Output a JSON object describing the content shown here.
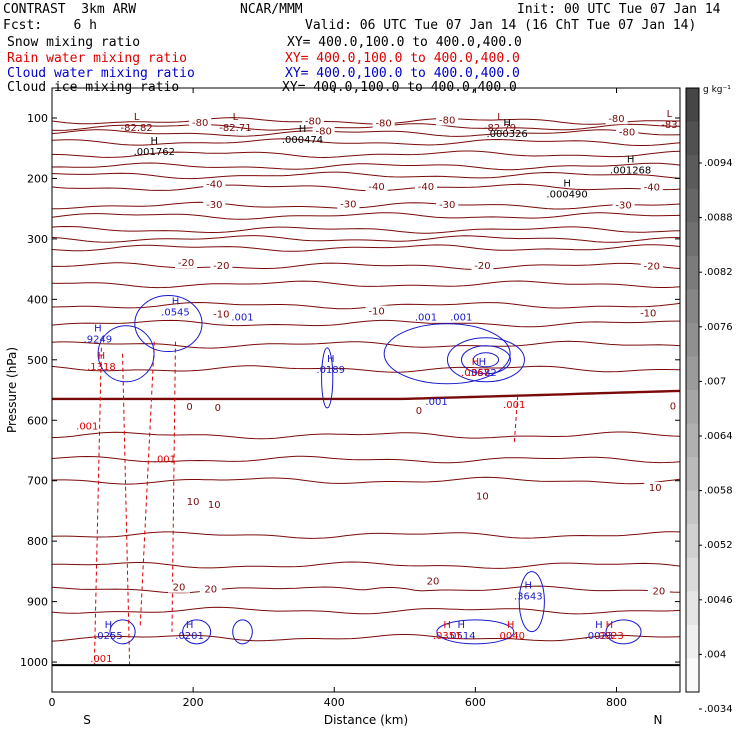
{
  "header": {
    "model": "CONTRAST  3km ARW",
    "org": "NCAR/MMM",
    "init": "Init: 00 UTC Tue 07 Jan 14",
    "fcst": "Fcst:    6 h",
    "valid": "Valid: 06 UTC Tue 07 Jan 14 (16 ChT Tue 07 Jan 14)",
    "fields": [
      {
        "name": "Snow mixing ratio",
        "xy": "XY= 400.0,100.0 to 400.0,400.0",
        "color": "#000000"
      },
      {
        "name": "Rain water mixing ratio",
        "xy": "XY= 400.0,100.0 to 400.0,400.0",
        "color": "#dd0000"
      },
      {
        "name": "Cloud water mixing ratio",
        "xy": "XY= 400.0,100.0 to 400.0,400.0",
        "color": "#0000cc"
      },
      {
        "name": "Cloud ice mixing ratio",
        "xy": "XY= 400.0,100.0 to 400.0,400.0",
        "color": "#000000"
      }
    ]
  },
  "colors": {
    "temperature": "#7a0a0a",
    "rain": "#dd0000",
    "cloud": "#1a1acc",
    "text": "#000000"
  },
  "chart_data": {
    "type": "line",
    "xlabel": "Distance (km)",
    "ylabel": "Pressure (hPa)",
    "xlim": [
      0,
      890
    ],
    "ylim": [
      1050,
      70
    ],
    "y_scale": "pressure",
    "x_ticks": [
      0,
      200,
      400,
      600,
      800
    ],
    "y_ticks": [
      100,
      200,
      300,
      400,
      500,
      600,
      700,
      800,
      900,
      1000
    ],
    "x_end_labels": {
      "left": "S",
      "right": "N"
    },
    "colorbar": {
      "unit": "g kg⁻¹",
      "ticks": [
        ".0094",
        ".0088",
        ".0082",
        ".0076",
        ".007",
        ".0064",
        ".0058",
        ".0052",
        ".0046",
        ".004",
        ".0034"
      ]
    },
    "isotherms": [
      {
        "label": "-80",
        "y": 105
      },
      {
        "label": "-80",
        "y": 115
      },
      {
        "label": "-80",
        "y": 125
      },
      {
        "label": "",
        "y": 140
      },
      {
        "label": "",
        "y": 160
      },
      {
        "label": "",
        "y": 180
      },
      {
        "label": "",
        "y": 195
      },
      {
        "label": "-40",
        "y": 215
      },
      {
        "label": "-30",
        "y": 245
      },
      {
        "label": "",
        "y": 262
      },
      {
        "label": "-20",
        "y": 285
      },
      {
        "label": "",
        "y": 300
      },
      {
        "label": "",
        "y": 315
      },
      {
        "label": "-10",
        "y": 345
      },
      {
        "label": "",
        "y": 375
      },
      {
        "label": "",
        "y": 410
      },
      {
        "label": "",
        "y": 440
      },
      {
        "label": "",
        "y": 475
      },
      {
        "label": "",
        "y": 515
      },
      {
        "label": "0",
        "y": 568,
        "bold": true
      },
      {
        "label": "",
        "y": 625
      },
      {
        "label": "",
        "y": 665
      },
      {
        "label": "10",
        "y": 700
      },
      {
        "label": "",
        "y": 790
      },
      {
        "label": "",
        "y": 840
      },
      {
        "label": "20",
        "y": 880
      },
      {
        "label": "",
        "y": 915
      },
      {
        "label": "",
        "y": 960
      }
    ],
    "temperature_labels": [
      {
        "text": "-80",
        "x": 210,
        "p": 113
      },
      {
        "text": "-80",
        "x": 370,
        "p": 111
      },
      {
        "text": "-80",
        "x": 560,
        "p": 109
      },
      {
        "text": "-80",
        "x": 800,
        "p": 107
      },
      {
        "text": "-80",
        "x": 470,
        "p": 114
      },
      {
        "text": "-80",
        "x": 385,
        "p": 127
      },
      {
        "text": "-80",
        "x": 815,
        "p": 129
      },
      {
        "text": "-40",
        "x": 230,
        "p": 215
      },
      {
        "text": "-40",
        "x": 460,
        "p": 219
      },
      {
        "text": "-40",
        "x": 530,
        "p": 219
      },
      {
        "text": "-40",
        "x": 850,
        "p": 220
      },
      {
        "text": "-30",
        "x": 230,
        "p": 249
      },
      {
        "text": "-30",
        "x": 420,
        "p": 248
      },
      {
        "text": "-30",
        "x": 560,
        "p": 249
      },
      {
        "text": "-30",
        "x": 810,
        "p": 250
      },
      {
        "text": "-20",
        "x": 190,
        "p": 345
      },
      {
        "text": "-20",
        "x": 240,
        "p": 350
      },
      {
        "text": "-20",
        "x": 610,
        "p": 350
      },
      {
        "text": "-20",
        "x": 850,
        "p": 351
      },
      {
        "text": "-10",
        "x": 460,
        "p": 425
      },
      {
        "text": "-10",
        "x": 845,
        "p": 428
      },
      {
        "text": "-10",
        "x": 240,
        "p": 430
      },
      {
        "text": "0",
        "x": 195,
        "p": 583
      },
      {
        "text": "0",
        "x": 235,
        "p": 585
      },
      {
        "text": "0",
        "x": 520,
        "p": 590
      },
      {
        "text": "0",
        "x": 880,
        "p": 582
      },
      {
        "text": "10",
        "x": 200,
        "p": 740
      },
      {
        "text": "10",
        "x": 230,
        "p": 745
      },
      {
        "text": "10",
        "x": 610,
        "p": 731
      },
      {
        "text": "10",
        "x": 855,
        "p": 717
      },
      {
        "text": "20",
        "x": 180,
        "p": 882
      },
      {
        "text": "20",
        "x": 225,
        "p": 885
      },
      {
        "text": "20",
        "x": 540,
        "p": 872
      },
      {
        "text": "20",
        "x": 860,
        "p": 888
      }
    ],
    "extrema": [
      {
        "kind": "L",
        "value": "-82.82",
        "x": 120,
        "p": 115,
        "color": "#7a0a0a"
      },
      {
        "kind": "L",
        "value": "-82.71",
        "x": 260,
        "p": 115,
        "color": "#7a0a0a"
      },
      {
        "kind": "L",
        "value": "-82.79",
        "x": 635,
        "p": 115,
        "color": "#7a0a0a"
      },
      {
        "kind": "L",
        "value": "-83",
        "x": 875,
        "p": 110,
        "color": "#7a0a0a"
      },
      {
        "kind": "H",
        "value": ".001762",
        "x": 145,
        "p": 155,
        "color": "#000000"
      },
      {
        "kind": "H",
        "value": ".000474",
        "x": 355,
        "p": 135,
        "color": "#000000"
      },
      {
        "kind": "H",
        "value": ".000326",
        "x": 645,
        "p": 125,
        "color": "#000000"
      },
      {
        "kind": "H",
        "value": ".001268",
        "x": 820,
        "p": 185,
        "color": "#000000"
      },
      {
        "kind": "H",
        "value": ".000490",
        "x": 730,
        "p": 225,
        "color": "#000000"
      },
      {
        "kind": "H",
        "value": ".9249",
        "x": 65,
        "p": 465,
        "color": "#1a1acc"
      },
      {
        "kind": "H",
        "value": ".0545",
        "x": 175,
        "p": 420,
        "color": "#1a1acc"
      },
      {
        "kind": "H",
        "value": ".0189",
        "x": 395,
        "p": 515,
        "color": "#1a1acc"
      },
      {
        "kind": "H",
        "value": ".0582",
        "x": 610,
        "p": 520,
        "color": "#1a1acc"
      },
      {
        "kind": "H",
        "value": ".3643",
        "x": 675,
        "p": 890,
        "color": "#1a1acc"
      },
      {
        "kind": "H",
        "value": ".0255",
        "x": 80,
        "p": 955,
        "color": "#1a1acc"
      },
      {
        "kind": "H",
        "value": ".0201",
        "x": 195,
        "p": 955,
        "color": "#1a1acc"
      },
      {
        "kind": "H",
        "value": ".0514",
        "x": 580,
        "p": 955,
        "color": "#1a1acc"
      },
      {
        "kind": "H",
        "value": ".0023",
        "x": 775,
        "p": 955,
        "color": "#1a1acc"
      },
      {
        "kind": "H",
        "value": ".1318",
        "x": 70,
        "p": 510,
        "color": "#dd0000"
      },
      {
        "kind": "H",
        "value": ".0367",
        "x": 600,
        "p": 520,
        "color": "#dd0000"
      },
      {
        "kind": "H",
        "value": ".0351",
        "x": 560,
        "p": 955,
        "color": "#dd0000"
      },
      {
        "kind": "H",
        "value": ".0040",
        "x": 650,
        "p": 955,
        "color": "#dd0000"
      },
      {
        "kind": "H",
        "value": ".0023",
        "x": 790,
        "p": 955,
        "color": "#dd0000"
      }
    ],
    "contour_labels": [
      {
        "text": ".001",
        "x": 270,
        "p": 435,
        "color": "#1a1acc"
      },
      {
        "text": ".001",
        "x": 530,
        "p": 435,
        "color": "#1a1acc"
      },
      {
        "text": ".001",
        "x": 580,
        "p": 435,
        "color": "#1a1acc"
      },
      {
        "text": ".001",
        "x": 545,
        "p": 575,
        "color": "#1a1acc"
      },
      {
        "text": ".001",
        "x": 50,
        "p": 615,
        "color": "#dd0000"
      },
      {
        "text": ".001",
        "x": 160,
        "p": 670,
        "color": "#dd0000"
      },
      {
        "text": ".001",
        "x": 655,
        "p": 580,
        "color": "#dd0000"
      },
      {
        "text": ".001",
        "x": 70,
        "p": 1000,
        "color": "#dd0000"
      }
    ]
  }
}
